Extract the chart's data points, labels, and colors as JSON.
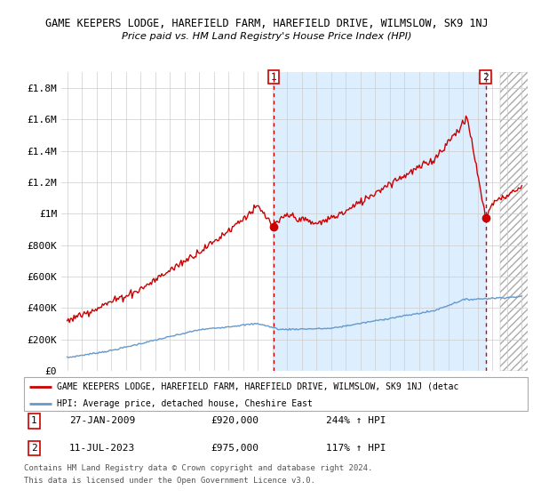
{
  "title": "GAME KEEPERS LODGE, HAREFIELD FARM, HAREFIELD DRIVE, WILMSLOW, SK9 1NJ",
  "subtitle": "Price paid vs. HM Land Registry's House Price Index (HPI)",
  "legend_property": "GAME KEEPERS LODGE, HAREFIELD FARM, HAREFIELD DRIVE, WILMSLOW, SK9 1NJ (detac",
  "legend_hpi": "HPI: Average price, detached house, Cheshire East",
  "footer1": "Contains HM Land Registry data © Crown copyright and database right 2024.",
  "footer2": "This data is licensed under the Open Government Licence v3.0.",
  "point1_date": "27-JAN-2009",
  "point1_price": "£920,000",
  "point1_hpi": "244% ↑ HPI",
  "point2_date": "11-JUL-2023",
  "point2_price": "£975,000",
  "point2_hpi": "117% ↑ HPI",
  "property_color": "#cc0000",
  "hpi_color": "#6699cc",
  "vline_color": "#cc0000",
  "shade_color": "#ddeeff",
  "ylim": [
    0,
    1900000
  ],
  "yticks": [
    0,
    200000,
    400000,
    600000,
    800000,
    1000000,
    1200000,
    1400000,
    1600000,
    1800000
  ],
  "ytick_labels": [
    "£0",
    "£200K",
    "£400K",
    "£600K",
    "£800K",
    "£1M",
    "£1.2M",
    "£1.4M",
    "£1.6M",
    "£1.8M"
  ],
  "xlim_left": 1994.6,
  "xlim_right": 2026.4,
  "point1_x": 2009.07,
  "point1_y": 920000,
  "point2_x": 2023.53,
  "point2_y": 975000,
  "hatch_start": 2024.5
}
